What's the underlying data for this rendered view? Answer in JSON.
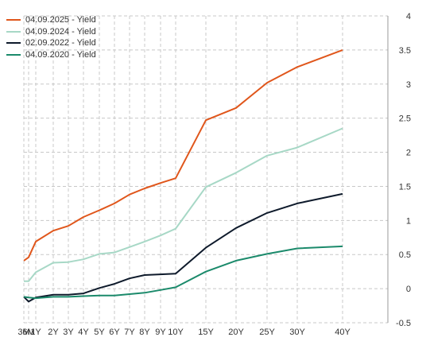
{
  "chart_data": {
    "type": "line",
    "categories": [
      "3M",
      "6M",
      "1Y",
      "2Y",
      "3Y",
      "4Y",
      "5Y",
      "6Y",
      "7Y",
      "8Y",
      "9Y",
      "10Y",
      "15Y",
      "20Y",
      "25Y",
      "30Y",
      "40Y"
    ],
    "x_years": [
      0.25,
      0.5,
      1,
      2,
      3,
      4,
      5,
      6,
      7,
      8,
      9,
      10,
      15,
      20,
      25,
      30,
      40
    ],
    "x_tick_labels": [
      "3M",
      "6M",
      "1Y",
      "2Y",
      "3Y",
      "4Y",
      "5Y",
      "6Y",
      "7Y",
      "8Y",
      "9Y",
      "10Y",
      "15Y",
      "20Y",
      "25Y",
      "30Y",
      "40Y"
    ],
    "y_ticks": [
      "4",
      "3.5",
      "3",
      "2.5",
      "2",
      "1.5",
      "1",
      "0.5",
      "0",
      "-0.5"
    ],
    "ylim": [
      -0.5,
      4
    ],
    "grid": true,
    "legend_position": "top-left",
    "series": [
      {
        "name": "04.09.2025 - Yield",
        "color": "#E0561B",
        "values": [
          0.41,
          0.46,
          0.69,
          0.85,
          0.92,
          1.05,
          1.15,
          1.25,
          1.38,
          1.47,
          1.55,
          1.62,
          2.47,
          2.65,
          3.02,
          3.25,
          3.5
        ]
      },
      {
        "name": "04.09.2024 - Yield",
        "color": "#A7D8C6",
        "values": [
          0.11,
          0.11,
          0.24,
          0.38,
          0.39,
          0.43,
          0.51,
          0.53,
          0.61,
          0.69,
          0.78,
          0.88,
          1.49,
          1.7,
          1.95,
          2.07,
          2.35
        ]
      },
      {
        "name": "02.09.2022 - Yield",
        "color": "#0E1A2B",
        "values": [
          -0.12,
          -0.19,
          -0.13,
          -0.09,
          -0.09,
          -0.07,
          0.01,
          0.07,
          0.15,
          0.2,
          0.21,
          0.22,
          0.6,
          0.89,
          1.11,
          1.25,
          1.39
        ]
      },
      {
        "name": "04.09.2020 - Yield",
        "color": "#1B8A6B",
        "values": [
          -0.12,
          -0.13,
          -0.14,
          -0.12,
          -0.12,
          -0.11,
          -0.1,
          -0.1,
          -0.08,
          -0.06,
          -0.02,
          0.02,
          0.25,
          0.41,
          0.51,
          0.59,
          0.62
        ]
      }
    ]
  }
}
